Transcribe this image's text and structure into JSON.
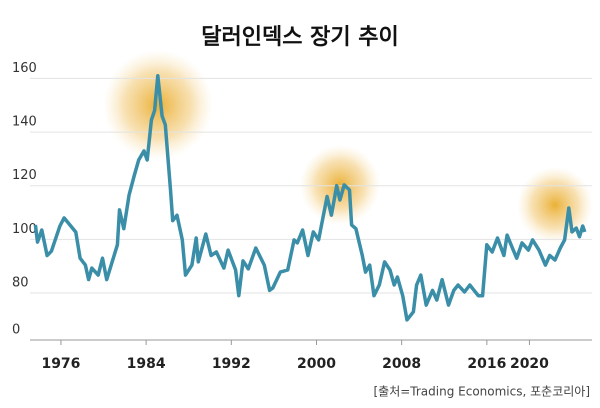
{
  "chart_data": {
    "type": "line",
    "title": "달러인덱스 장기 추이",
    "source": "[출처=Trading Economics, 포춘코리아]",
    "axis_break": true,
    "grid": true,
    "xlim": [
      1973,
      2025.5
    ],
    "xticks": [
      1976,
      1984,
      1992,
      2000,
      2008,
      2016,
      2020
    ],
    "ylim": [
      62.5,
      165
    ],
    "yticks": [
      0,
      80,
      100,
      120,
      140,
      160
    ],
    "x": [
      1973.6,
      1973.8,
      1974.2,
      1974.7,
      1975.1,
      1975.9,
      1976.3,
      1977.4,
      1977.8,
      1978.3,
      1978.6,
      1978.9,
      1979.5,
      1979.9,
      1980.3,
      1981.3,
      1981.5,
      1981.9,
      1982.4,
      1982.9,
      1983.3,
      1983.8,
      1984.1,
      1984.5,
      1984.8,
      1985.1,
      1985.5,
      1985.8,
      1986.3,
      1986.5,
      1986.9,
      1987.4,
      1987.7,
      1988.3,
      1988.7,
      1988.9,
      1989.6,
      1990.1,
      1990.6,
      1991.3,
      1991.7,
      1992.4,
      1992.7,
      1993.1,
      1993.6,
      1994.3,
      1995.1,
      1995.6,
      1995.9,
      1996.6,
      1997.3,
      1997.9,
      1998.2,
      1998.7,
      1999.2,
      1999.7,
      2000.2,
      2000.6,
      2001.0,
      2001.4,
      2001.9,
      2002.2,
      2002.6,
      2003.1,
      2003.3,
      2003.7,
      2004.3,
      2004.6,
      2005.0,
      2005.4,
      2005.9,
      2006.4,
      2006.9,
      2007.3,
      2007.6,
      2008.1,
      2008.5,
      2009.1,
      2009.4,
      2009.8,
      2010.3,
      2010.9,
      2011.3,
      2011.8,
      2012.4,
      2012.9,
      2013.3,
      2013.9,
      2014.4,
      2015.2,
      2015.6,
      2016.0,
      2016.5,
      2017.0,
      2017.6,
      2017.9,
      2018.4,
      2018.8,
      2019.3,
      2019.9,
      2020.3,
      2020.9,
      2021.5,
      2021.9,
      2022.4,
      2022.9,
      2023.3,
      2023.7,
      2024.0,
      2024.4,
      2024.7,
      2025.0,
      2025.2
    ],
    "series": [
      {
        "color": "#3a8ea8",
        "values": [
          105.4,
          99,
          103.5,
          94,
          95.6,
          105,
          108,
          102.7,
          93,
          90.4,
          85,
          89.3,
          86.7,
          93,
          85,
          98,
          111,
          104,
          116.6,
          124,
          129.6,
          133,
          129.6,
          144.5,
          148,
          161,
          146,
          142.7,
          118,
          107,
          109,
          99.8,
          86.7,
          90.4,
          100.5,
          91.6,
          102,
          94,
          95.3,
          89.3,
          96,
          88.6,
          79,
          92,
          89,
          96.8,
          90.4,
          81,
          81.9,
          87.8,
          88.6,
          99.8,
          98.7,
          103.5,
          94,
          102.8,
          99.8,
          108,
          116,
          109,
          120,
          114.7,
          120.3,
          118.4,
          105.4,
          104,
          94,
          87.8,
          90.4,
          79,
          83,
          91.6,
          88.6,
          83,
          86,
          79,
          70,
          73,
          83,
          86.7,
          75.5,
          81,
          77.4,
          85,
          75.5,
          81,
          83,
          80.4,
          83,
          79,
          79,
          98,
          95.3,
          100.5,
          94,
          101.6,
          96.8,
          93,
          98.7,
          96,
          99.8,
          96,
          90.4,
          94,
          92.3,
          96.8,
          99.8,
          111.7,
          102.8,
          104.2,
          101,
          105,
          102.8
        ]
      }
    ]
  }
}
